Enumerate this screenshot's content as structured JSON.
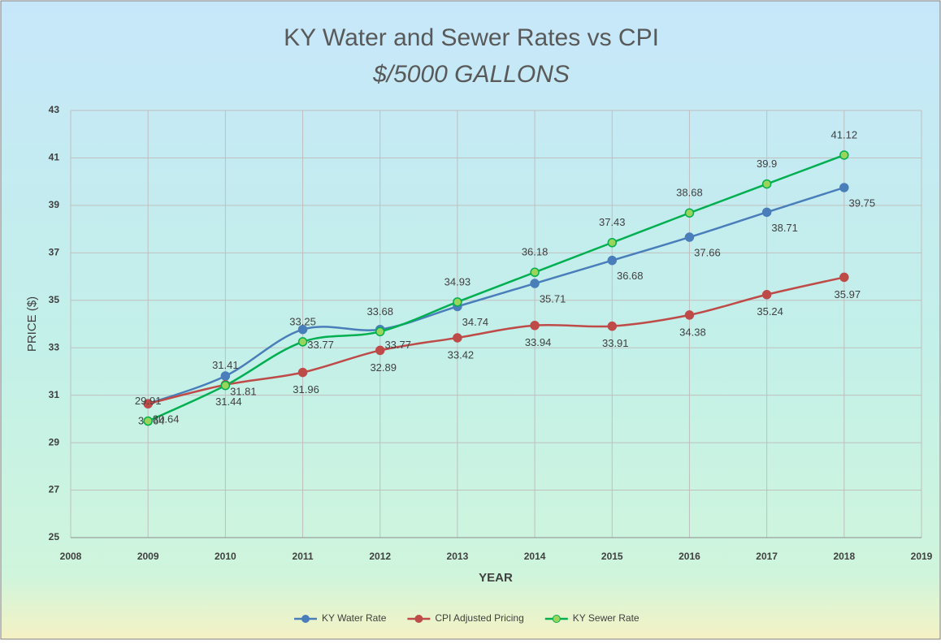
{
  "chart_data": {
    "type": "line",
    "title": "KY Water and Sewer Rates vs CPI",
    "subtitle": "$/5000 GALLONS",
    "x_label": "YEAR",
    "y_label": "PRICE ($)",
    "x": [
      2009,
      2010,
      2011,
      2012,
      2013,
      2014,
      2015,
      2016,
      2017,
      2018
    ],
    "series": [
      {
        "name": "KY Water Rate",
        "color": "#4a7ebb",
        "values": [
          30.64,
          31.81,
          33.77,
          33.77,
          34.74,
          35.71,
          36.68,
          37.66,
          38.71,
          39.75
        ]
      },
      {
        "name": "CPI Adjusted Pricing",
        "color": "#be4b48",
        "values": [
          30.64,
          31.44,
          31.96,
          32.89,
          33.42,
          33.94,
          33.91,
          34.38,
          35.24,
          35.97
        ]
      },
      {
        "name": "KY Sewer Rate",
        "color": "#00b050",
        "values": [
          29.91,
          31.41,
          33.25,
          33.68,
          34.93,
          36.18,
          37.43,
          38.68,
          39.9,
          41.12
        ]
      }
    ],
    "xlim": [
      2008,
      2019
    ],
    "xticks": [
      2008,
      2009,
      2010,
      2011,
      2012,
      2013,
      2014,
      2015,
      2016,
      2017,
      2018,
      2019
    ],
    "ylim": [
      25,
      43
    ],
    "yticks": [
      25,
      27,
      29,
      31,
      33,
      35,
      37,
      39,
      41,
      43
    ],
    "grid": true,
    "smooth": true,
    "legend": "bottom"
  }
}
